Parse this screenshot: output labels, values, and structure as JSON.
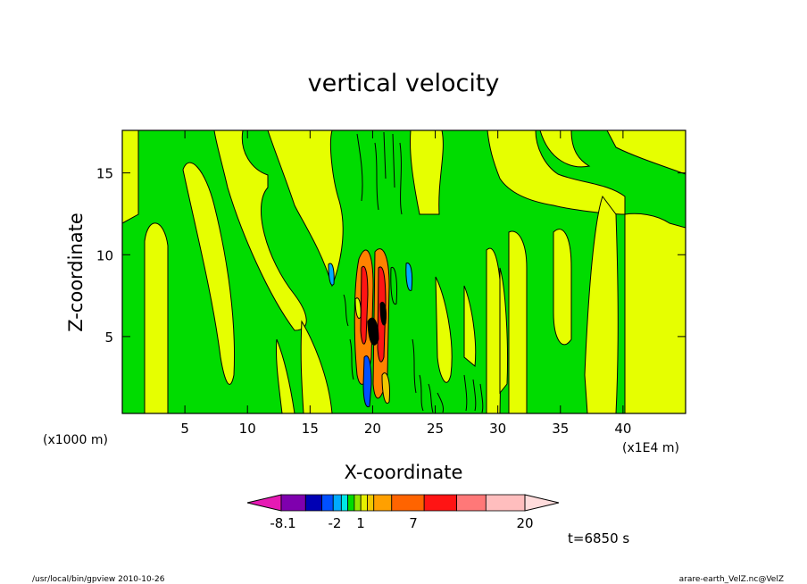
{
  "chart_data": {
    "type": "heatmap",
    "title": "vertical velocity",
    "xlabel": "X-coordinate",
    "ylabel": "Z-coordinate",
    "x_unit_left": "(x1000 m)",
    "x_unit_right": "(x1E4 m)",
    "xlim": [
      0,
      45
    ],
    "ylim": [
      0.3,
      17.6
    ],
    "x_ticks": [
      "5",
      "10",
      "15",
      "20",
      "25",
      "30",
      "35",
      "40"
    ],
    "x_tick_values": [
      5,
      10,
      15,
      20,
      25,
      30,
      35,
      40
    ],
    "y_ticks": [
      "5",
      "10",
      "15"
    ],
    "y_tick_values": [
      5,
      10,
      15
    ],
    "time_label": "t=6850 s",
    "colorbar": {
      "tick_labels": [
        "-8.1",
        "-2",
        "1",
        "7",
        "20"
      ],
      "colors": [
        "#e61ab4",
        "#7f00ae",
        "#0000b4",
        "#0050ff",
        "#00aaff",
        "#00e6e6",
        "#00dc00",
        "#96e600",
        "#e6f000",
        "#f0c800",
        "#ffa000",
        "#ff6400",
        "#ff1414",
        "#ff7878",
        "#ffbebe",
        "#ffdcdc"
      ]
    },
    "contour_colors": {
      "weak_positive": "#e6ff00",
      "weak_negative": "#00dc00",
      "strong_positive": "#ff8200",
      "strong_negative": "#0050ff",
      "medium_negative": "#00aaff"
    },
    "grid": false
  },
  "footer": {
    "left": "/usr/local/bin/gpview  2010-10-26",
    "right": "arare-earth_VelZ.nc@VelZ"
  }
}
